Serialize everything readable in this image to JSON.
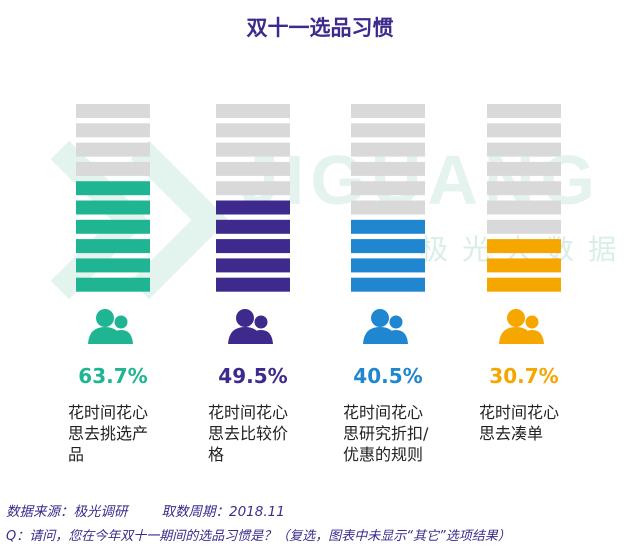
{
  "title": "双十一选品习惯",
  "watermark": {
    "brand": "JIGUANG",
    "sub": "极光大数据"
  },
  "chart_data": {
    "type": "bar",
    "title": "双十一选品习惯",
    "unit": "%",
    "segments_total": 10,
    "categories": [
      "花时间花心思去挑选产品",
      "花时间花心思去比较价格",
      "花时间花心思研究折扣/优惠的规则",
      "花时间花心思去凑单"
    ],
    "values": [
      63.7,
      49.5,
      40.5,
      30.7
    ],
    "value_labels": [
      "63.7%",
      "49.5%",
      "40.5%",
      "30.7%"
    ],
    "label_lines": [
      [
        "花时间花心",
        "思去挑选产",
        "品"
      ],
      [
        "花时间花心",
        "思去比较价",
        "格"
      ],
      [
        "花时间花心",
        "思研究折扣/",
        "优惠的规则"
      ],
      [
        "花时间花心",
        "思去凑单"
      ]
    ],
    "colors": [
      "#1fb592",
      "#3d2a8c",
      "#1f86cf",
      "#f5a700"
    ],
    "empty_color": "#d9d9d9",
    "icon": "users-icon"
  },
  "footer": {
    "source": "数据来源：极光调研",
    "period": "取数周期：2018.11",
    "question": "Q：请问，您在今年双十一期间的选品习惯是？（复选，图表中未显示“其它”选项结果）"
  }
}
